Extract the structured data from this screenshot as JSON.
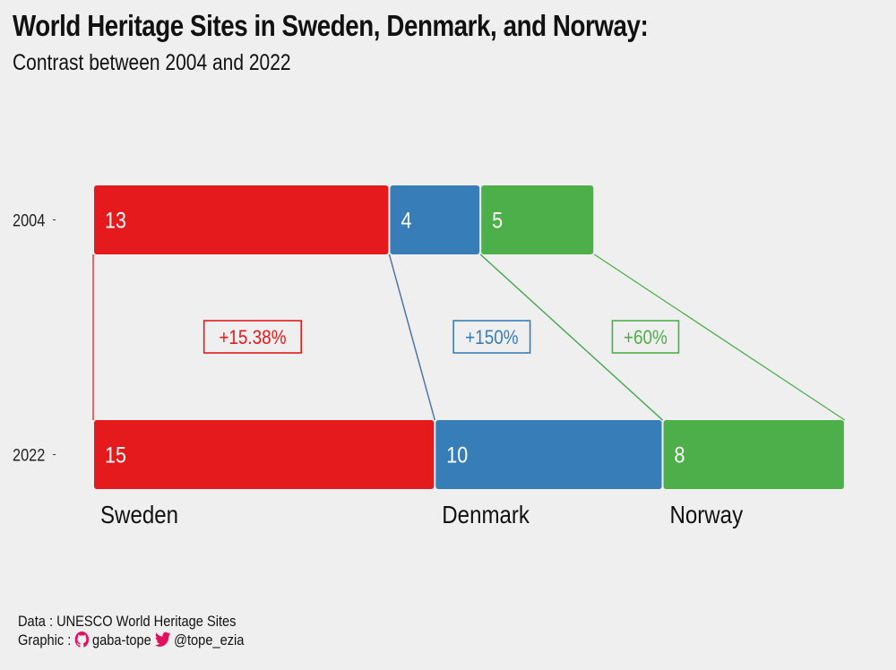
{
  "title": "World Heritage Sites in Sweden, Denmark, and Norway:",
  "subtitle": "Contrast between 2004 and 2022",
  "caption": {
    "data_line": "Data : UNESCO World Heritage Sites",
    "graphic_prefix": "Graphic :",
    "github_handle": "gaba-tope",
    "twitter_handle": "@tope_ezia",
    "github_icon": "github-icon",
    "twitter_icon": "twitter-icon",
    "icon_color": "#e0115f"
  },
  "chart_data": {
    "type": "bar",
    "orientation": "horizontal-stacked",
    "title": "World Heritage Sites in Sweden, Denmark, and Norway:",
    "subtitle": "Contrast between 2004 and 2022",
    "years": [
      "2004",
      "2022"
    ],
    "categories": [
      "Sweden",
      "Denmark",
      "Norway"
    ],
    "colors": [
      "#e41a1c",
      "#377eb8",
      "#4daf4a"
    ],
    "series": [
      {
        "name": "2004",
        "values": [
          13,
          4,
          5
        ]
      },
      {
        "name": "2022",
        "values": [
          15,
          10,
          8
        ]
      }
    ],
    "changes": [
      "+15.38%",
      "+150%",
      "+60%"
    ],
    "grid": false,
    "legend": "none"
  }
}
